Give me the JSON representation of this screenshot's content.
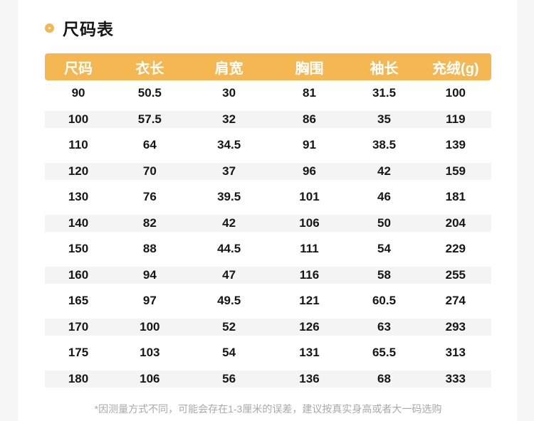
{
  "colors": {
    "accent_orange": "#f5b752",
    "stripe_gray": "#f4f4f5",
    "text_dark": "#161616",
    "note_gray": "#a9a9a9",
    "page_gutter": "#f6f6f7"
  },
  "section": {
    "title": "尺码表",
    "bullet_icon": "orange-ring-icon"
  },
  "size_table": {
    "headers": [
      "尺码",
      "衣长",
      "肩宽",
      "胸围",
      "袖长",
      "充绒(g)"
    ],
    "col_widths": [
      "15%",
      "17%",
      "18.5%",
      "17.5%",
      "16%",
      "16%"
    ],
    "rows": [
      [
        "90",
        "50.5",
        "30",
        "81",
        "31.5",
        "100"
      ],
      [
        "100",
        "57.5",
        "32",
        "86",
        "35",
        "119"
      ],
      [
        "110",
        "64",
        "34.5",
        "91",
        "38.5",
        "139"
      ],
      [
        "120",
        "70",
        "37",
        "96",
        "42",
        "159"
      ],
      [
        "130",
        "76",
        "39.5",
        "101",
        "46",
        "181"
      ],
      [
        "140",
        "82",
        "42",
        "106",
        "50",
        "204"
      ],
      [
        "150",
        "88",
        "44.5",
        "111",
        "54",
        "229"
      ],
      [
        "160",
        "94",
        "47",
        "116",
        "58",
        "255"
      ],
      [
        "165",
        "97",
        "49.5",
        "121",
        "60.5",
        "274"
      ],
      [
        "170",
        "100",
        "52",
        "126",
        "63",
        "293"
      ],
      [
        "175",
        "103",
        "54",
        "131",
        "65.5",
        "313"
      ],
      [
        "180",
        "106",
        "56",
        "136",
        "68",
        "333"
      ]
    ]
  },
  "footnote": "*因测量方式不同，可能会存在1-3厘米的误差，建议按真实身高或者大一码选购"
}
